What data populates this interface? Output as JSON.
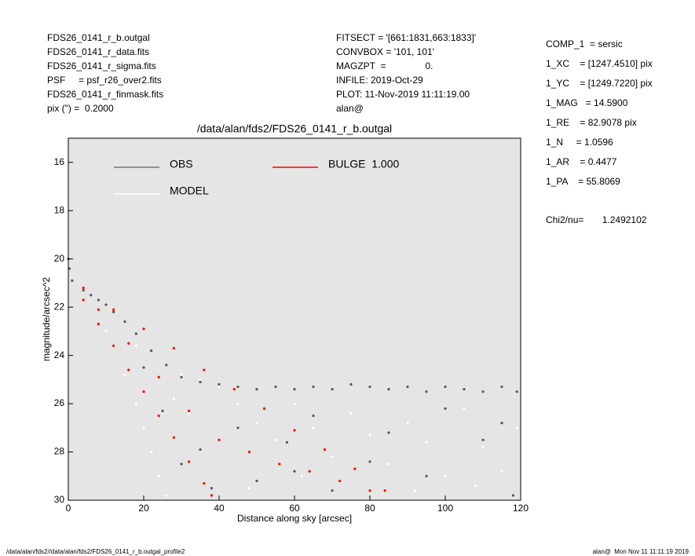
{
  "header": {
    "left": [
      "FDS26_0141_r_b.outgal",
      "FDS26_0141_r_data.fits",
      "FDS26_0141_r_sigma.fits",
      "PSF     = psf_r26_over2.fits",
      "FDS26_0141_r_finmask.fits",
      "pix (\") =  0.2000"
    ],
    "middle": [
      "FITSECT = '[661:1831,663:1833]'",
      "CONVBOX = '101, 101'",
      "MAGZPT  =               0.",
      "INFILE: 2019-Oct-29",
      "PLOT: 11-Nov-2019 11:11:19.00",
      "alan@"
    ],
    "right": [
      "COMP_1  = sersic",
      "1_XC    = [1247.4510] pix",
      "1_YC    = [1249.7220] pix",
      "1_MAG   = 14.5900",
      "1_RE    = 82.9078 pix",
      "1_N     = 1.0596",
      "1_AR    = 0.4477",
      "1_PA    = 55.8069"
    ],
    "chi2": "Chi2/nu=       1.2492102"
  },
  "footer": {
    "left": "/data/alan/fds2//data/alan/fds2/FDS26_0141_r_b.outgal_profile2",
    "right": "alan@  Mon Nov 11 11:11:19 2019"
  },
  "chart_data": {
    "type": "scatter",
    "title": "/data/alan/fds2/FDS26_0141_r_b.outgal",
    "x_label": "Distance along sky [arcsec]",
    "y_label": "magnitude/arcsec^2",
    "xlim": [
      0,
      120
    ],
    "xticks": [
      0,
      20,
      40,
      60,
      80,
      100,
      120
    ],
    "ylim": [
      30,
      15
    ],
    "yticks": [
      16,
      18,
      20,
      22,
      24,
      26,
      28,
      30
    ],
    "background": "#e5e5e5",
    "series": [
      {
        "name": "MODEL",
        "color": "#ffffff",
        "x": [
          10,
          15,
          18,
          20,
          22,
          24,
          26,
          30,
          35,
          40,
          45,
          50,
          55,
          60,
          65,
          70,
          75,
          80,
          85,
          90,
          95,
          100,
          105,
          110,
          115,
          119,
          48,
          62,
          92,
          108,
          18,
          28,
          32
        ],
        "values": [
          23.0,
          24.8,
          26.0,
          27.0,
          28.0,
          29.0,
          29.8,
          24.8,
          25.0,
          25.3,
          26.0,
          26.8,
          27.5,
          26.0,
          27.0,
          28.2,
          26.4,
          27.3,
          28.5,
          26.8,
          27.6,
          29.0,
          26.2,
          27.8,
          28.8,
          27.0,
          29.5,
          29.0,
          29.6,
          29.4,
          23.6,
          25.8,
          26.4
        ]
      },
      {
        "name": "OBS",
        "color": "#555555",
        "x": [
          0,
          0.3,
          1,
          4,
          6,
          8,
          10,
          12,
          15,
          18,
          22,
          26,
          30,
          35,
          40,
          45,
          50,
          55,
          60,
          65,
          70,
          75,
          80,
          85,
          90,
          95,
          100,
          105,
          110,
          115,
          119,
          30,
          38,
          50,
          60,
          70,
          80,
          95,
          110,
          118,
          58,
          45,
          100,
          115,
          25,
          20,
          35,
          65,
          85
        ],
        "values": [
          20.0,
          20.4,
          20.9,
          21.3,
          21.5,
          21.7,
          21.9,
          22.2,
          22.6,
          23.1,
          23.8,
          24.4,
          24.9,
          25.1,
          25.2,
          25.3,
          25.4,
          25.3,
          25.4,
          25.3,
          25.4,
          25.2,
          25.3,
          25.4,
          25.3,
          25.5,
          25.3,
          25.4,
          25.5,
          25.3,
          25.5,
          28.5,
          29.5,
          29.2,
          28.8,
          29.6,
          28.4,
          29.0,
          27.5,
          29.8,
          27.6,
          27.0,
          26.2,
          26.8,
          26.3,
          24.5,
          27.9,
          26.5,
          27.2
        ]
      },
      {
        "name": "BULGE  1.000",
        "color": "#ff0000",
        "x": [
          4,
          12,
          20,
          28,
          36,
          44,
          52,
          60,
          68,
          76,
          84,
          4,
          8,
          12,
          16,
          20,
          24,
          28,
          32,
          36,
          38,
          8,
          16,
          24,
          32,
          40,
          48,
          56,
          64,
          72,
          80
        ],
        "values": [
          21.2,
          22.1,
          22.9,
          23.7,
          24.6,
          25.4,
          26.2,
          27.1,
          27.9,
          28.7,
          29.6,
          21.7,
          22.7,
          23.6,
          24.6,
          25.5,
          26.5,
          27.4,
          28.4,
          29.3,
          29.8,
          22.1,
          23.5,
          24.9,
          26.3,
          27.5,
          28.0,
          28.5,
          28.8,
          29.2,
          29.6
        ]
      }
    ]
  }
}
